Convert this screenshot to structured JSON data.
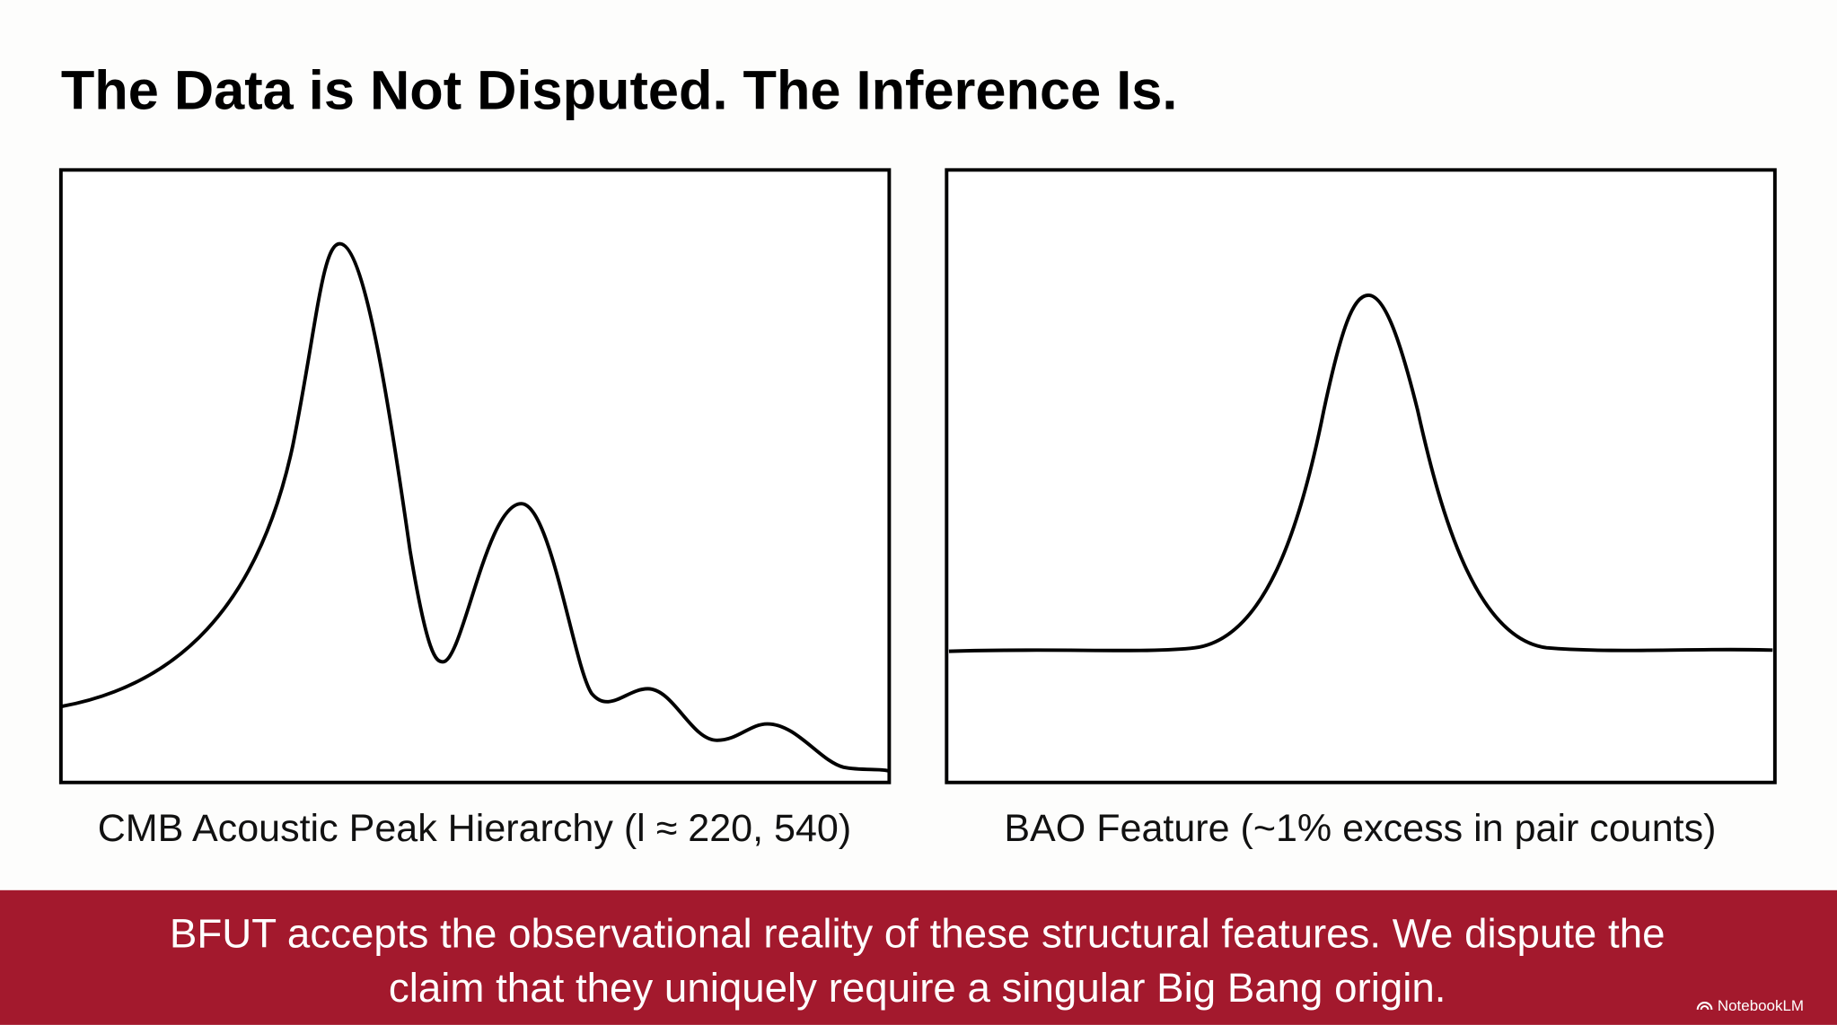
{
  "header": {
    "title": "The Data is Not Disputed. The Inference Is."
  },
  "panels": [
    {
      "caption": "CMB Acoustic Peak Hierarchy (l ≈ 220, 540)"
    },
    {
      "caption": "BAO Feature (~1% excess in pair counts)"
    }
  ],
  "footer": {
    "lines": [
      "BFUT accepts the observational reality of these structural features. We dispute the",
      "claim that they uniquely require a singular Big Bang origin."
    ]
  },
  "watermark": "NotebookLM"
}
